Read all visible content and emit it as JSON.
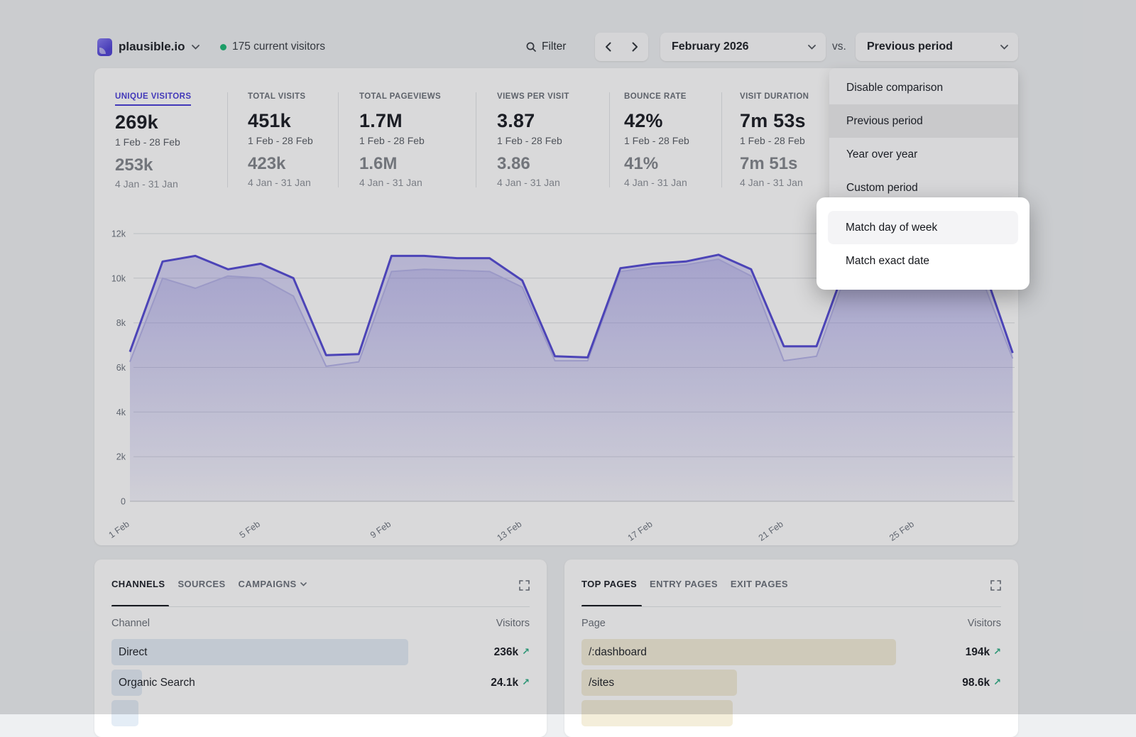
{
  "header": {
    "site": "plausible.io",
    "current_visitors": "175 current visitors",
    "filter_label": "Filter",
    "period_label": "February 2026",
    "vs_label": "vs.",
    "comparison_label": "Previous period"
  },
  "comparison_menu": {
    "items": [
      {
        "label": "Disable comparison"
      },
      {
        "label": "Previous period"
      },
      {
        "label": "Year over year"
      },
      {
        "label": "Custom period"
      }
    ],
    "match_options": [
      {
        "label": "Match day of week"
      },
      {
        "label": "Match exact date"
      }
    ]
  },
  "metrics": [
    {
      "label": "UNIQUE VISITORS",
      "value": "269k",
      "range": "1 Feb - 28 Feb",
      "prev_value": "253k",
      "prev_range": "4 Jan - 31 Jan"
    },
    {
      "label": "TOTAL VISITS",
      "value": "451k",
      "range": "1 Feb - 28 Feb",
      "prev_value": "423k",
      "prev_range": "4 Jan - 31 Jan"
    },
    {
      "label": "TOTAL PAGEVIEWS",
      "value": "1.7M",
      "range": "1 Feb - 28 Feb",
      "prev_value": "1.6M",
      "prev_range": "4 Jan - 31 Jan"
    },
    {
      "label": "VIEWS PER VISIT",
      "value": "3.87",
      "range": "1 Feb - 28 Feb",
      "prev_value": "3.86",
      "prev_range": "4 Jan - 31 Jan"
    },
    {
      "label": "BOUNCE RATE",
      "value": "42%",
      "range": "1 Feb - 28 Feb",
      "prev_value": "41%",
      "prev_range": "4 Jan - 31 Jan"
    },
    {
      "label": "VISIT DURATION",
      "value": "7m 53s",
      "range": "1 Feb - 28 Feb",
      "prev_value": "7m 51s",
      "prev_range": "4 Jan - 31 Jan"
    }
  ],
  "chart_data": {
    "type": "line",
    "title": "Unique visitors, February 2026 vs previous period",
    "x_tick_labels": [
      "1 Feb",
      "5 Feb",
      "9 Feb",
      "13 Feb",
      "17 Feb",
      "21 Feb",
      "25 Feb"
    ],
    "x_tick_days": [
      1,
      5,
      9,
      13,
      17,
      21,
      25
    ],
    "y_ticks": [
      "0",
      "2k",
      "4k",
      "6k",
      "8k",
      "10k",
      "12k"
    ],
    "y_tick_values": [
      0,
      2000,
      4000,
      6000,
      8000,
      10000,
      12000
    ],
    "ylim": [
      0,
      12000
    ],
    "grid": true,
    "legend_position": "none",
    "series": [
      {
        "name": "1 Feb - 28 Feb",
        "values": [
          6700,
          10750,
          11000,
          10400,
          10650,
          10000,
          6550,
          6600,
          11000,
          11000,
          10900,
          10900,
          9900,
          6500,
          6450,
          10450,
          10650,
          10750,
          11050,
          10400,
          6950,
          6950,
          11000,
          11050,
          11050,
          11000,
          10900,
          6650
        ]
      },
      {
        "name": "4 Jan - 31 Jan",
        "values": [
          6250,
          10000,
          9550,
          10100,
          10000,
          9200,
          6050,
          6250,
          10300,
          10400,
          10350,
          10300,
          9600,
          6300,
          6300,
          10300,
          10500,
          10600,
          10850,
          10100,
          6300,
          6500,
          10600,
          10700,
          10700,
          10650,
          10200,
          6400
        ]
      }
    ],
    "colors": {
      "current": "#584fd6",
      "previous": "#b6b3e8"
    }
  },
  "channels_panel": {
    "tabs": [
      {
        "label": "CHANNELS"
      },
      {
        "label": "SOURCES"
      },
      {
        "label": "CAMPAIGNS"
      }
    ],
    "columns": {
      "left": "Channel",
      "right": "Visitors"
    },
    "rows": [
      {
        "label": "Direct",
        "value": "236k",
        "width_css": "71%"
      },
      {
        "label": "Organic Search",
        "value": "24.1k",
        "width_css": "7.3%"
      },
      {
        "label": "",
        "value": "",
        "width_css": "6.5%"
      }
    ]
  },
  "pages_panel": {
    "tabs": [
      {
        "label": "TOP PAGES"
      },
      {
        "label": "ENTRY PAGES"
      },
      {
        "label": "EXIT PAGES"
      }
    ],
    "columns": {
      "left": "Page",
      "right": "Visitors"
    },
    "rows": [
      {
        "label": "/:dashboard",
        "value": "194k",
        "width_css": "75%"
      },
      {
        "label": "/sites",
        "value": "98.6k",
        "width_css": "37%"
      },
      {
        "label": "",
        "value": "",
        "width_css": "36%"
      }
    ]
  },
  "colors": {
    "accent_indigo": "#4d41d8",
    "green": "#2fae85",
    "bar_blue": "#e4edf6",
    "bar_tan": "#f4eeda"
  }
}
